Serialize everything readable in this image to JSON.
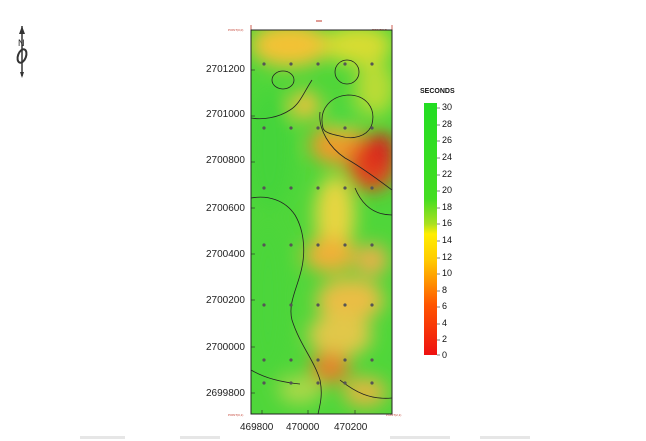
{
  "map": {
    "y_labels": [
      "2701200",
      "2701000",
      "2700800",
      "2700600",
      "2700400",
      "2700200",
      "2700000",
      "2699800"
    ],
    "x_labels": [
      "469800",
      "470000",
      "470200"
    ],
    "corner_labels": {
      "top_left": "POINT(0,0)",
      "top_right": "POINT(2,0)",
      "bottom_left": "POINT(0,1)",
      "bottom_right": "POINT(2,1)"
    }
  },
  "legend": {
    "title": "SECONDS",
    "ticks": [
      "30",
      "28",
      "26",
      "24",
      "22",
      "20",
      "18",
      "16",
      "14",
      "12",
      "10",
      "8",
      "6",
      "4",
      "2",
      "0"
    ],
    "color_high": "#22dd22",
    "color_mid": "#ffee00",
    "color_low": "#ee1111"
  },
  "north_arrow": {
    "letter": "N"
  }
}
